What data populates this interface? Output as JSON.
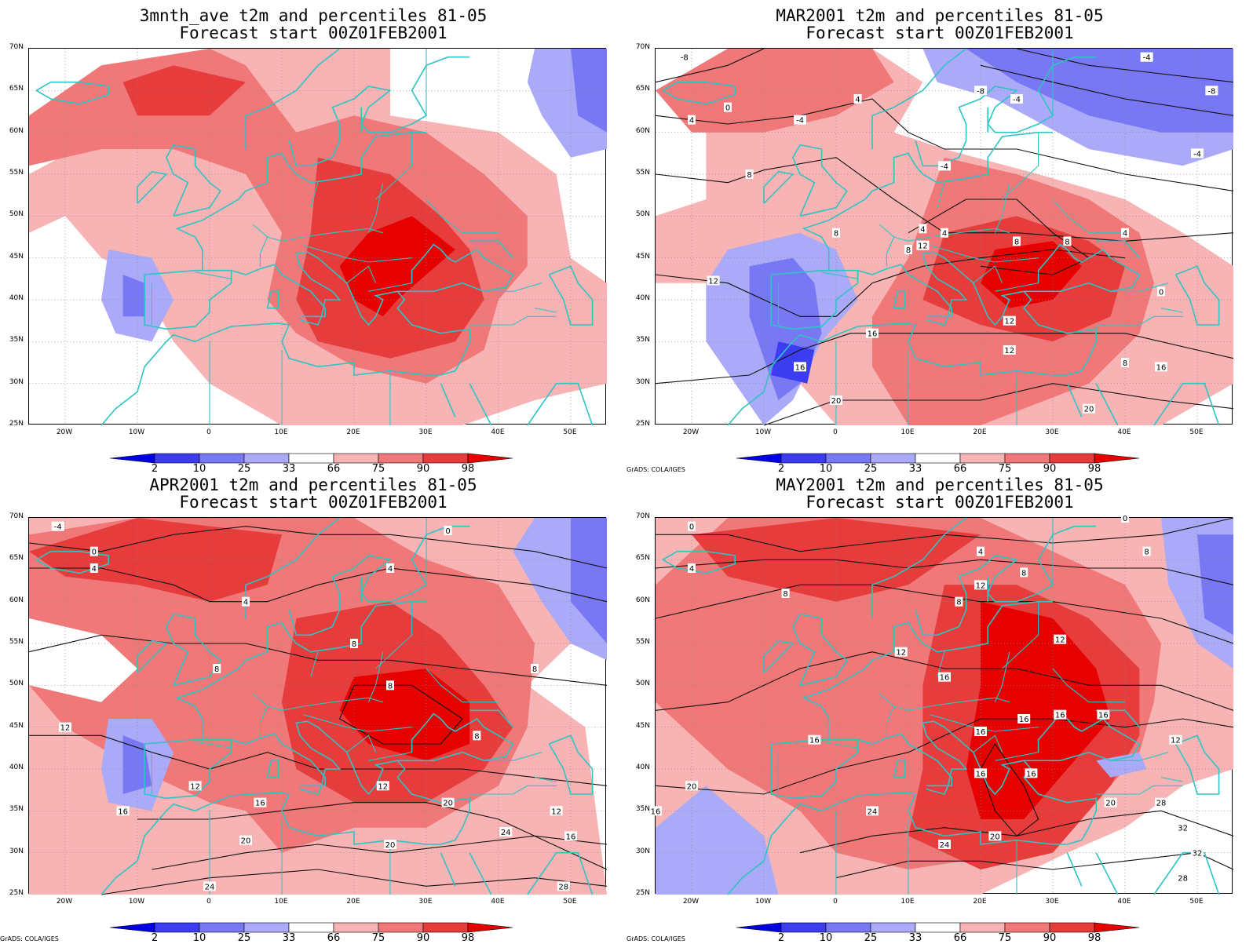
{
  "panels": [
    {
      "title": "3mnth_ave t2m and percentiles 81-05",
      "subtitle": "Forecast start 00Z01FEB2001",
      "show_credit": false,
      "contour_labels": []
    },
    {
      "title": "MAR2001 t2m and percentiles 81-05",
      "subtitle": "Forecast start 00Z01FEB2001",
      "show_credit": true,
      "contour_labels": [
        "-8",
        "-8",
        "-4",
        "-4",
        "-4",
        "0",
        "4",
        "4",
        "-4",
        "-8",
        "-4",
        "8",
        "4",
        "4",
        "8",
        "12",
        "8",
        "8",
        "8",
        "4",
        "0",
        "12",
        "12",
        "16",
        "16",
        "12",
        "16",
        "8",
        "20",
        "20"
      ]
    },
    {
      "title": "APR2001 t2m and percentiles 81-05",
      "subtitle": "Forecast start 00Z01FEB2001",
      "show_credit": true,
      "contour_labels": [
        "-4",
        "0",
        "4",
        "0",
        "4",
        "4",
        "8",
        "8",
        "8",
        "8",
        "8",
        "12",
        "12",
        "12",
        "16",
        "16",
        "20",
        "20",
        "24",
        "20",
        "12",
        "16",
        "24",
        "28"
      ]
    },
    {
      "title": "MAY2001 t2m and percentiles 81-05",
      "subtitle": "Forecast start 00Z01FEB2001",
      "show_credit": true,
      "contour_labels": [
        "0",
        "4",
        "4",
        "8",
        "8",
        "8",
        "8",
        "12",
        "12",
        "12",
        "16",
        "16",
        "16",
        "16",
        "16",
        "16",
        "16",
        "12",
        "16",
        "20",
        "24",
        "20",
        "24",
        "28",
        "16",
        "20",
        "32",
        "32",
        "28",
        "0"
      ]
    }
  ],
  "lat_labels": [
    "70N",
    "65N",
    "60N",
    "55N",
    "50N",
    "45N",
    "40N",
    "35N",
    "30N",
    "25N"
  ],
  "lon_labels": [
    "20W",
    "10W",
    "0",
    "10E",
    "20E",
    "30E",
    "40E",
    "50E"
  ],
  "colorbar_labels": [
    "2",
    "10",
    "25",
    "33",
    "66",
    "75",
    "90",
    "98"
  ],
  "colorbar_colors": [
    "#0000e6",
    "#3c3cf0",
    "#7878f5",
    "#aaaaf8",
    "#ffffff",
    "#f8b4b4",
    "#f07878",
    "#e63c3c",
    "#e60000"
  ],
  "credit": "GrADS: COLA/IGES",
  "colors": {
    "coast": "#2ec4c4",
    "warm_light": "#f8b4b4",
    "warm_mid": "#f07878",
    "warm_dark": "#e63c3c",
    "warm_max": "#e60000",
    "cold_light": "#aaaaf8",
    "cold_mid": "#7878f5",
    "cold_dark": "#3c3cf0"
  }
}
